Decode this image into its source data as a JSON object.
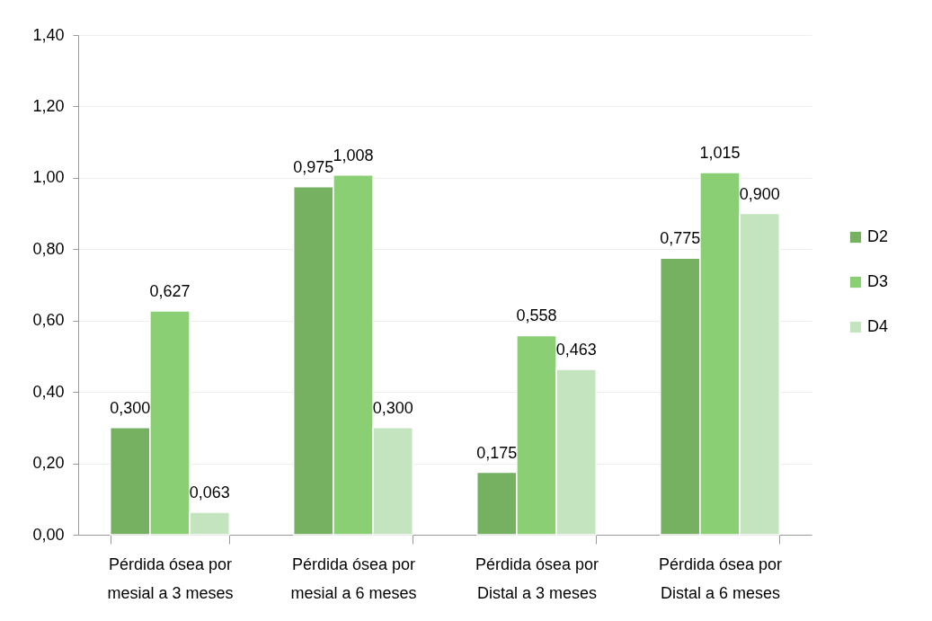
{
  "chart_data": {
    "type": "bar",
    "categories": [
      "Pérdida ósea por mesial a 3 meses",
      "Pérdida ósea por mesial a 6 meses",
      "Pérdida ósea por Distal a 3 meses",
      "Pérdida ósea por Distal a 6 meses"
    ],
    "series": [
      {
        "name": "D2",
        "color": "#75b161",
        "values": [
          0.3,
          0.975,
          0.175,
          0.775
        ],
        "value_labels": [
          "0,300",
          "0,975",
          "0,175",
          "0,775"
        ]
      },
      {
        "name": "D3",
        "color": "#8bcf74",
        "values": [
          0.627,
          1.008,
          0.558,
          1.015
        ],
        "value_labels": [
          "0,627",
          "1,008",
          "0,558",
          "1,015"
        ]
      },
      {
        "name": "D4",
        "color": "#c4e3bf",
        "values": [
          0.063,
          0.3,
          0.463,
          0.9
        ],
        "value_labels": [
          "0,063",
          "0,300",
          "0,463",
          "0,900"
        ]
      }
    ],
    "ylim": [
      0,
      1.4
    ],
    "yticks": [
      {
        "value": 0,
        "label": "0,00"
      },
      {
        "value": 0.2,
        "label": "0,20"
      },
      {
        "value": 0.4,
        "label": "0,40"
      },
      {
        "value": 0.6,
        "label": "0,60"
      },
      {
        "value": 0.8,
        "label": "0,80"
      },
      {
        "value": 1.0,
        "label": "1,00"
      },
      {
        "value": 1.2,
        "label": "1,20"
      },
      {
        "value": 1.4,
        "label": "1,40"
      }
    ],
    "grid": "y",
    "legend": "right"
  }
}
